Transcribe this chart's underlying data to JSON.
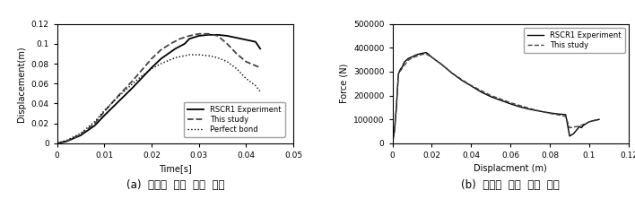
{
  "fig_width": 7.08,
  "fig_height": 2.22,
  "dpi": 100,
  "plot_a": {
    "xlabel": "Time[s]",
    "ylabel": "Displacement(m)",
    "xlim": [
      0,
      0.05
    ],
    "ylim": [
      0,
      0.12
    ],
    "xticks": [
      0,
      0.01,
      0.02,
      0.03,
      0.04,
      0.05
    ],
    "yticks": [
      0,
      0.02,
      0.04,
      0.06,
      0.08,
      0.1,
      0.12
    ],
    "legend_entries": [
      "RSCR1 Experiment",
      "This study",
      "Perfect bond"
    ],
    "caption": "(a)  시간에  따른  변위  곳선"
  },
  "plot_b": {
    "xlabel": "Displacment (m)",
    "ylabel": "Force (N)",
    "xlim": [
      0,
      0.12
    ],
    "ylim": [
      0,
      500000
    ],
    "xticks": [
      0,
      0.02,
      0.04,
      0.06,
      0.08,
      0.1,
      0.12
    ],
    "yticks": [
      0,
      100000,
      200000,
      300000,
      400000,
      500000
    ],
    "legend_entries": [
      "RSCR1 Experiment",
      "This study"
    ],
    "caption": "(b)  하중에  따른  변위  곳선"
  },
  "line_color_solid": "#000000",
  "line_color_dashed": "#444444",
  "line_color_dotted": "#000000",
  "background_color": "#ffffff",
  "legend_fontsize": 6.0,
  "axis_label_fontsize": 7,
  "tick_fontsize": 6.5,
  "caption_fontsize": 8.5
}
